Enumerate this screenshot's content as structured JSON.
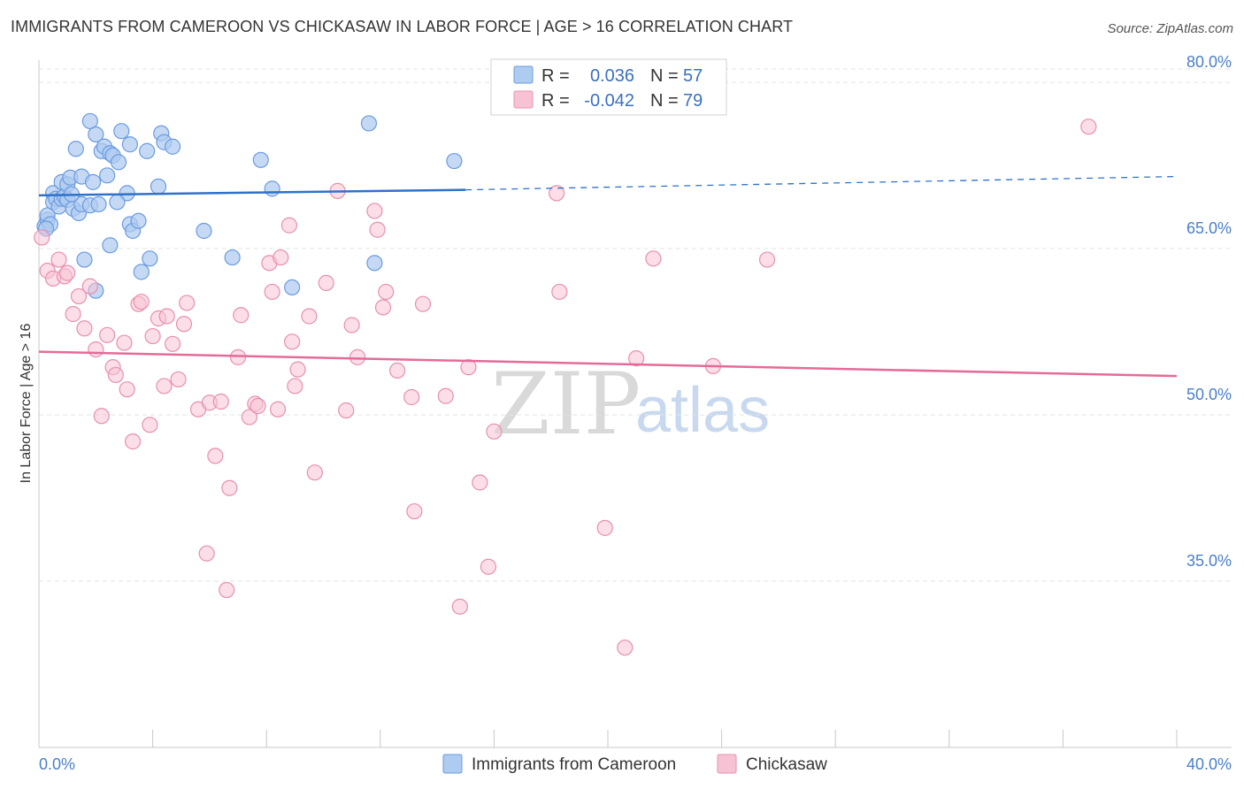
{
  "title": "IMMIGRANTS FROM CAMEROON VS CHICKASAW IN LABOR FORCE | AGE > 16 CORRELATION CHART",
  "source": "Source: ZipAtlas.com",
  "watermark": {
    "zip": "ZIP",
    "atlas": "atlas"
  },
  "colors": {
    "blue_fill": "#aecbf0",
    "blue_stroke": "#6b9be0",
    "blue_line": "#2f72c9",
    "pink_fill": "#f7c3d4",
    "pink_stroke": "#e790ae",
    "pink_line": "#e46b98",
    "tick_text": "#4a7fc9",
    "grid": "#e3e3e3"
  },
  "legend": {
    "rows": [
      {
        "r_label": "R =",
        "r_value": "0.036",
        "n_label": "N =",
        "n_value": "57"
      },
      {
        "r_label": "R =",
        "r_value": "-0.042",
        "n_label": "N =",
        "n_value": "79"
      }
    ]
  },
  "chart_data": {
    "type": "scatter",
    "title": "IMMIGRANTS FROM CAMEROON VS CHICKASAW IN LABOR FORCE | AGE > 16 CORRELATION CHART",
    "xlabel": "",
    "ylabel": "In Labor Force | Age > 16",
    "xlim": [
      0,
      40
    ],
    "ylim": [
      20,
      82
    ],
    "x_tick_labels": [
      "0.0%",
      "40.0%"
    ],
    "y_ticks": [
      35,
      50,
      65,
      80
    ],
    "y_tick_labels": [
      "35.0%",
      "50.0%",
      "65.0%",
      "80.0%"
    ],
    "grid": "horizontal dashed",
    "legend_position": "top-center",
    "series": [
      {
        "name": "Immigrants from Cameroon",
        "color": "blue",
        "trend": {
          "x_start": 0,
          "y_start": 69.8,
          "x_solid_end": 15,
          "y_solid_end": 70.3,
          "x_end": 40,
          "y_end": 71.5
        },
        "points": [
          [
            0.2,
            67.0
          ],
          [
            0.3,
            67.6
          ],
          [
            0.3,
            68.0
          ],
          [
            0.4,
            67.2
          ],
          [
            0.5,
            70.0
          ],
          [
            0.5,
            69.2
          ],
          [
            0.6,
            69.5
          ],
          [
            0.7,
            68.8
          ],
          [
            0.8,
            69.5
          ],
          [
            0.8,
            71.0
          ],
          [
            0.9,
            69.7
          ],
          [
            1.0,
            70.8
          ],
          [
            1.0,
            69.4
          ],
          [
            1.1,
            71.4
          ],
          [
            1.2,
            68.6
          ],
          [
            1.3,
            74.0
          ],
          [
            1.4,
            68.2
          ],
          [
            1.5,
            71.5
          ],
          [
            1.5,
            69.0
          ],
          [
            1.6,
            64.0
          ],
          [
            1.8,
            68.9
          ],
          [
            1.8,
            76.5
          ],
          [
            1.9,
            71.0
          ],
          [
            2.0,
            75.3
          ],
          [
            2.0,
            61.2
          ],
          [
            2.1,
            69.0
          ],
          [
            2.2,
            73.8
          ],
          [
            2.3,
            74.2
          ],
          [
            2.4,
            71.6
          ],
          [
            2.5,
            73.6
          ],
          [
            2.5,
            65.3
          ],
          [
            2.6,
            73.4
          ],
          [
            2.8,
            72.8
          ],
          [
            2.9,
            75.6
          ],
          [
            3.1,
            70.0
          ],
          [
            3.2,
            74.4
          ],
          [
            3.2,
            67.2
          ],
          [
            3.3,
            66.6
          ],
          [
            3.5,
            67.5
          ],
          [
            3.6,
            62.9
          ],
          [
            3.8,
            73.8
          ],
          [
            3.9,
            64.1
          ],
          [
            4.2,
            70.6
          ],
          [
            4.3,
            75.4
          ],
          [
            4.4,
            74.6
          ],
          [
            4.7,
            74.2
          ],
          [
            5.8,
            66.6
          ],
          [
            6.8,
            64.2
          ],
          [
            7.8,
            73.0
          ],
          [
            8.2,
            70.4
          ],
          [
            8.9,
            61.5
          ],
          [
            11.6,
            76.3
          ],
          [
            11.8,
            63.7
          ],
          [
            14.6,
            72.9
          ],
          [
            0.25,
            66.8
          ],
          [
            1.15,
            69.9
          ],
          [
            2.75,
            69.2
          ]
        ]
      },
      {
        "name": "Chickasaw",
        "color": "pink",
        "trend": {
          "x_start": 0,
          "y_start": 55.7,
          "x_end": 40,
          "y_end": 53.5
        },
        "points": [
          [
            0.1,
            66.0
          ],
          [
            0.3,
            63.0
          ],
          [
            0.5,
            62.3
          ],
          [
            0.7,
            64.0
          ],
          [
            0.9,
            62.5
          ],
          [
            1.0,
            62.8
          ],
          [
            1.2,
            59.1
          ],
          [
            1.4,
            60.7
          ],
          [
            1.6,
            57.8
          ],
          [
            1.8,
            61.6
          ],
          [
            2.0,
            55.9
          ],
          [
            2.2,
            49.9
          ],
          [
            2.4,
            57.2
          ],
          [
            2.6,
            54.3
          ],
          [
            2.7,
            53.6
          ],
          [
            3.0,
            56.5
          ],
          [
            3.1,
            52.3
          ],
          [
            3.3,
            47.6
          ],
          [
            3.5,
            60.0
          ],
          [
            3.6,
            60.2
          ],
          [
            3.9,
            49.1
          ],
          [
            4.0,
            57.1
          ],
          [
            4.2,
            58.7
          ],
          [
            4.4,
            52.6
          ],
          [
            4.5,
            58.9
          ],
          [
            4.7,
            56.4
          ],
          [
            4.9,
            53.2
          ],
          [
            5.1,
            58.2
          ],
          [
            5.2,
            60.1
          ],
          [
            5.6,
            50.5
          ],
          [
            5.9,
            37.5
          ],
          [
            6.0,
            51.1
          ],
          [
            6.2,
            46.3
          ],
          [
            6.4,
            51.2
          ],
          [
            6.6,
            34.2
          ],
          [
            6.7,
            43.4
          ],
          [
            7.0,
            55.2
          ],
          [
            7.1,
            59.0
          ],
          [
            7.4,
            49.8
          ],
          [
            7.6,
            51.0
          ],
          [
            7.7,
            50.8
          ],
          [
            8.1,
            63.7
          ],
          [
            8.2,
            61.1
          ],
          [
            8.4,
            50.5
          ],
          [
            8.5,
            64.2
          ],
          [
            8.8,
            67.1
          ],
          [
            8.9,
            56.6
          ],
          [
            9.0,
            52.6
          ],
          [
            9.1,
            54.1
          ],
          [
            9.5,
            58.9
          ],
          [
            9.7,
            44.8
          ],
          [
            10.1,
            61.9
          ],
          [
            10.5,
            70.2
          ],
          [
            10.8,
            50.4
          ],
          [
            11.0,
            58.1
          ],
          [
            11.2,
            55.2
          ],
          [
            11.8,
            68.4
          ],
          [
            11.9,
            66.7
          ],
          [
            12.1,
            59.7
          ],
          [
            12.2,
            61.1
          ],
          [
            12.6,
            54.0
          ],
          [
            13.1,
            51.6
          ],
          [
            13.2,
            41.3
          ],
          [
            13.5,
            60.0
          ],
          [
            14.3,
            51.7
          ],
          [
            14.8,
            32.7
          ],
          [
            15.1,
            54.3
          ],
          [
            15.5,
            43.9
          ],
          [
            15.8,
            36.3
          ],
          [
            16.0,
            48.5
          ],
          [
            18.2,
            70.0
          ],
          [
            18.3,
            61.1
          ],
          [
            19.9,
            39.8
          ],
          [
            20.6,
            29.0
          ],
          [
            21.0,
            55.1
          ],
          [
            21.6,
            64.1
          ],
          [
            23.7,
            54.4
          ],
          [
            25.6,
            64.0
          ],
          [
            36.9,
            76.0
          ]
        ]
      }
    ]
  },
  "bottom_legend": [
    "Immigrants from Cameroon",
    "Chickasaw"
  ]
}
